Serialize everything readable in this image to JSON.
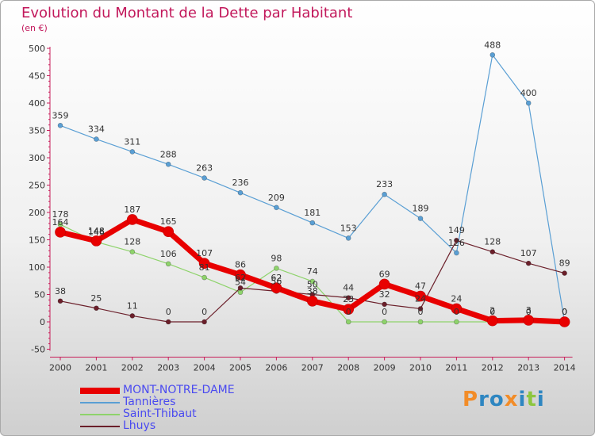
{
  "header": {
    "title": "Evolution du Montant de la Dette par Habitant",
    "subtitle": "(en €)"
  },
  "logo": {
    "text": "Proxiti",
    "letters": [
      {
        "ch": "P",
        "color": "#f28c28"
      },
      {
        "ch": "r",
        "color": "#2e86c1"
      },
      {
        "ch": "o",
        "color": "#2e86c1"
      },
      {
        "ch": "x",
        "color": "#f28c28"
      },
      {
        "ch": "i",
        "color": "#2e86c1"
      },
      {
        "ch": "t",
        "color": "#8dc63f"
      },
      {
        "ch": "i",
        "color": "#2e86c1"
      }
    ]
  },
  "chart_data": {
    "type": "line",
    "x": [
      "2000",
      "2001",
      "2002",
      "2003",
      "2004",
      "2005",
      "2006",
      "2007",
      "2008",
      "2009",
      "2010",
      "2011",
      "2012",
      "2013",
      "2014"
    ],
    "ylim": [
      -50,
      500
    ],
    "yticks": [
      -50,
      0,
      50,
      100,
      150,
      200,
      250,
      300,
      350,
      400,
      450,
      500
    ],
    "grid": false,
    "legend_position": "bottom-left",
    "series": [
      {
        "name": "MONT-NOTRE-DAME",
        "color": "#e80000",
        "values": [
          164,
          148,
          187,
          165,
          107,
          86,
          62,
          38,
          23,
          69,
          47,
          24,
          2,
          3,
          0
        ]
      },
      {
        "name": "Tannières",
        "color": "#5a9fd4",
        "values": [
          359,
          334,
          311,
          288,
          263,
          236,
          209,
          181,
          153,
          233,
          189,
          126,
          488,
          400,
          0
        ]
      },
      {
        "name": "Saint-Thibaut",
        "color": "#8ed36b",
        "values": [
          178,
          146,
          128,
          106,
          81,
          54,
          98,
          74,
          0,
          0,
          0,
          0,
          0,
          0,
          0
        ]
      },
      {
        "name": "Lhuys",
        "color": "#6b1f2a",
        "values": [
          38,
          25,
          11,
          0,
          0,
          62,
          56,
          50,
          44,
          32,
          24,
          149,
          128,
          107,
          89
        ]
      }
    ]
  }
}
